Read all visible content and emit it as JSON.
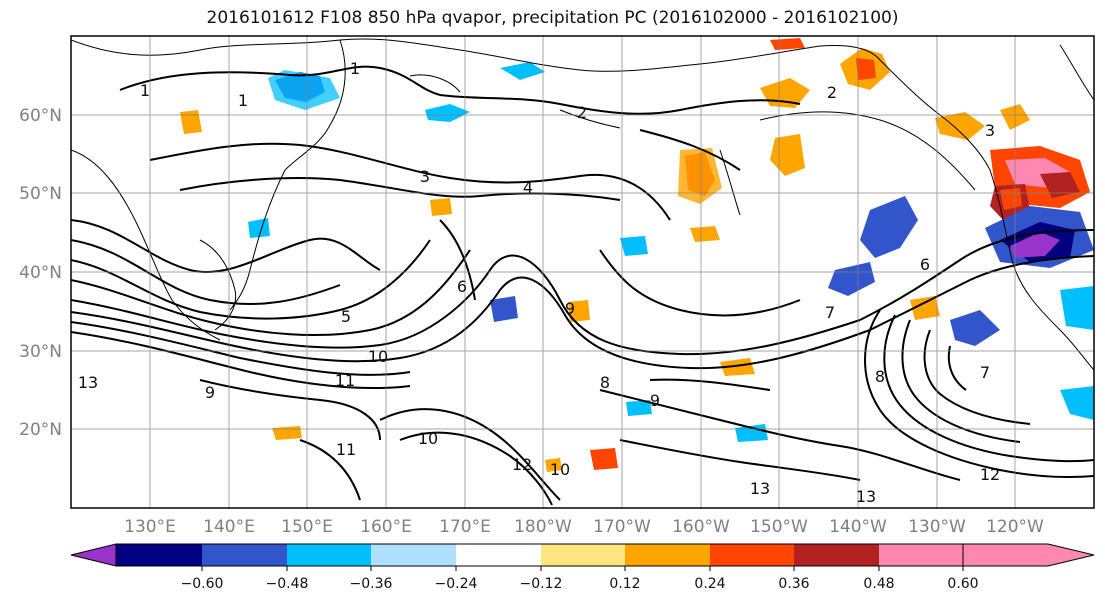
{
  "title": "2016101612 F108 850 hPa qvapor, precipitation PC (2016102000 - 2016102100)",
  "map": {
    "lon_labels": [
      "130°E",
      "140°E",
      "150°E",
      "160°E",
      "170°E",
      "180°W",
      "170°W",
      "160°W",
      "150°W",
      "140°W",
      "130°W",
      "120°W"
    ],
    "lat_labels": [
      "60°N",
      "50°N",
      "40°N",
      "30°N",
      "20°N"
    ],
    "contour_labels": [
      "1",
      "1",
      "1",
      "2",
      "2",
      "3",
      "3",
      "4",
      "5",
      "6",
      "6",
      "7",
      "7",
      "8",
      "8",
      "9",
      "9",
      "9",
      "10",
      "10",
      "10",
      "11",
      "11",
      "12",
      "12",
      "13",
      "13",
      "13"
    ]
  },
  "colorbar": {
    "colors": [
      "#9933cc",
      "#000080",
      "#3355cc",
      "#00bfff",
      "#b0e0ff",
      "#ffffff",
      "#ffe680",
      "#ffa500",
      "#ff4500",
      "#b22222",
      "#ff88b0"
    ],
    "tick_labels": [
      "−0.60",
      "−0.48",
      "−0.36",
      "−0.24",
      "−0.12",
      "0.12",
      "0.24",
      "0.36",
      "0.48",
      "0.60"
    ]
  }
}
